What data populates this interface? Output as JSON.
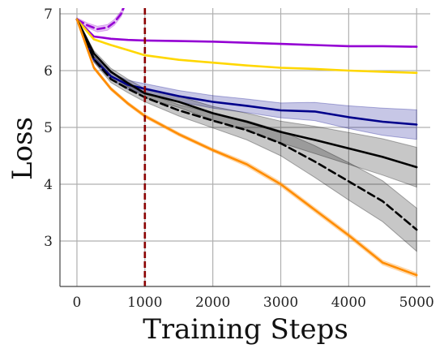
{
  "chart_data": {
    "type": "line",
    "title": "",
    "xlabel": "Training Steps",
    "ylabel": "Loss",
    "xlim": [
      -250,
      5200
    ],
    "ylim": [
      2.2,
      7.1
    ],
    "xticks": [
      0,
      1000,
      2000,
      3000,
      4000,
      5000
    ],
    "yticks": [
      3,
      4,
      5,
      6,
      7
    ],
    "grid": true,
    "legend": "none",
    "vline": {
      "x": 1000,
      "color": "#8b0000",
      "style": "dashed"
    },
    "series": [
      {
        "color": "#9400d3",
        "style": "solid",
        "band": false,
        "x": [
          0,
          250,
          500,
          750,
          1000,
          1500,
          2000,
          2500,
          3000,
          3500,
          4000,
          4500,
          5000
        ],
        "y": [
          6.9,
          6.6,
          6.56,
          6.54,
          6.53,
          6.52,
          6.51,
          6.49,
          6.47,
          6.45,
          6.43,
          6.43,
          6.42
        ]
      },
      {
        "color": "#9400d3",
        "style": "dashed",
        "band": true,
        "x": [
          0,
          150,
          300,
          450,
          550,
          650,
          700
        ],
        "y": [
          6.9,
          6.8,
          6.73,
          6.76,
          6.85,
          7.0,
          7.15
        ],
        "spread": [
          0.03,
          0.04,
          0.05,
          0.05,
          0.05,
          0.05,
          0.05
        ]
      },
      {
        "color": "#ffd700",
        "style": "solid",
        "band": false,
        "x": [
          0,
          250,
          500,
          750,
          1000,
          1500,
          2000,
          2500,
          3000,
          3500,
          4000,
          4500,
          5000
        ],
        "y": [
          6.9,
          6.55,
          6.45,
          6.36,
          6.27,
          6.19,
          6.14,
          6.09,
          6.05,
          6.03,
          6.0,
          5.98,
          5.96
        ]
      },
      {
        "color": "#00008b",
        "style": "solid",
        "band": true,
        "x": [
          0,
          250,
          500,
          750,
          1000,
          1500,
          2000,
          2500,
          3000,
          3500,
          4000,
          4500,
          5000
        ],
        "y": [
          6.9,
          6.2,
          5.9,
          5.75,
          5.68,
          5.55,
          5.45,
          5.38,
          5.3,
          5.28,
          5.18,
          5.1,
          5.05
        ],
        "spread": [
          0.02,
          0.05,
          0.06,
          0.08,
          0.09,
          0.1,
          0.11,
          0.12,
          0.13,
          0.16,
          0.2,
          0.24,
          0.26
        ]
      },
      {
        "color": "#000000",
        "style": "solid",
        "band": true,
        "x": [
          0,
          250,
          500,
          750,
          1000,
          1500,
          2000,
          2500,
          3000,
          3500,
          4000,
          4500,
          5000
        ],
        "y": [
          6.9,
          6.3,
          5.98,
          5.78,
          5.6,
          5.45,
          5.25,
          5.1,
          4.92,
          4.78,
          4.63,
          4.48,
          4.3
        ],
        "spread": [
          0.02,
          0.05,
          0.06,
          0.07,
          0.08,
          0.1,
          0.12,
          0.15,
          0.19,
          0.24,
          0.28,
          0.32,
          0.35
        ]
      },
      {
        "color": "#000000",
        "style": "dashed",
        "band": true,
        "x": [
          0,
          250,
          500,
          750,
          1000,
          1500,
          2000,
          2500,
          3000,
          3500,
          4000,
          4500,
          5000
        ],
        "y": [
          6.9,
          6.2,
          5.85,
          5.68,
          5.53,
          5.3,
          5.12,
          4.95,
          4.72,
          4.4,
          4.05,
          3.7,
          3.2
        ],
        "spread": [
          0.02,
          0.05,
          0.06,
          0.07,
          0.08,
          0.1,
          0.13,
          0.17,
          0.22,
          0.28,
          0.33,
          0.36,
          0.38
        ]
      },
      {
        "color": "#ff8c00",
        "style": "solid",
        "band": true,
        "x": [
          0,
          250,
          500,
          750,
          1000,
          1500,
          2000,
          2500,
          3000,
          3500,
          4000,
          4500,
          5000
        ],
        "y": [
          6.9,
          6.05,
          5.68,
          5.42,
          5.2,
          4.88,
          4.6,
          4.35,
          4.0,
          3.55,
          3.1,
          2.62,
          2.4
        ],
        "spread": [
          0.02,
          0.03,
          0.03,
          0.03,
          0.03,
          0.03,
          0.03,
          0.04,
          0.04,
          0.04,
          0.04,
          0.04,
          0.04
        ]
      }
    ]
  }
}
